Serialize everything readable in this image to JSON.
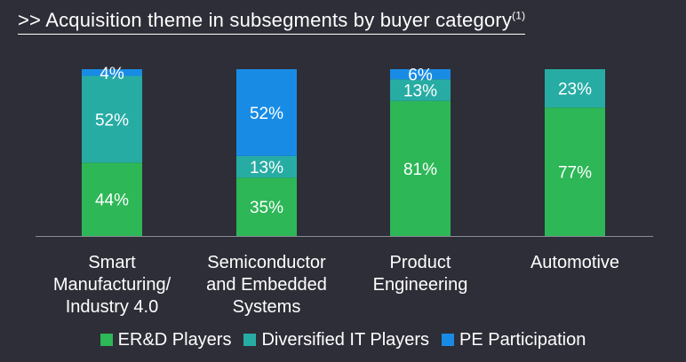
{
  "title": {
    "prefix": ">>",
    "text": "Acquisition theme in subsegments by buyer category",
    "footnote": "(1)"
  },
  "colors": {
    "background": "#2e2e38",
    "er_d": "#2db757",
    "diversified_it": "#27aca4",
    "pe": "#188ce5"
  },
  "chart_data": {
    "type": "bar",
    "stacked": true,
    "categories": [
      [
        "Smart",
        "Manufacturing/",
        "Industry 4.0"
      ],
      [
        "Semiconductor",
        "and Embedded",
        "Systems"
      ],
      [
        "Product",
        "Engineering"
      ],
      [
        "Automotive"
      ]
    ],
    "series": [
      {
        "name": "ER&D Players",
        "color": "#2db757",
        "values": [
          44,
          35,
          81,
          77
        ],
        "labels": [
          "44%",
          "35%",
          "81%",
          "77%"
        ]
      },
      {
        "name": "Diversified IT Players",
        "color": "#27aca4",
        "values": [
          52,
          13,
          13,
          23
        ],
        "labels": [
          "52%",
          "13%",
          "13%",
          "23%"
        ]
      },
      {
        "name": "PE Participation",
        "color": "#188ce5",
        "values": [
          4,
          52,
          6,
          0
        ],
        "labels": [
          "4%",
          "52%",
          "6%",
          ""
        ]
      }
    ],
    "ylim": [
      0,
      100
    ],
    "grid": false,
    "legend_position": "bottom"
  }
}
